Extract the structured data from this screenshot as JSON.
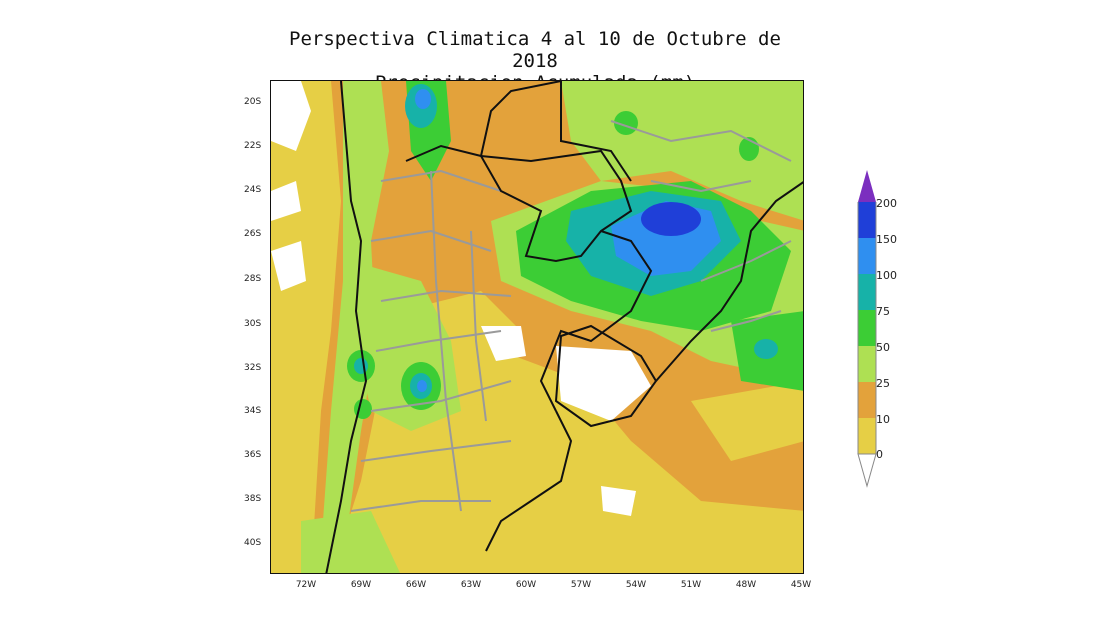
{
  "title": {
    "line1": "Perspectiva Climatica 4 al 10 de Octubre de 2018",
    "line2": "Precipitacion Acumulada (mm)"
  },
  "map": {
    "lat_labels": [
      "20S",
      "22S",
      "24S",
      "26S",
      "28S",
      "30S",
      "32S",
      "34S",
      "36S",
      "38S",
      "40S"
    ],
    "lon_labels": [
      "72W",
      "69W",
      "66W",
      "63W",
      "60W",
      "57W",
      "54W",
      "51W",
      "48W",
      "45W"
    ]
  },
  "legend": {
    "levels": [
      "0",
      "10",
      "25",
      "50",
      "75",
      "100",
      "150",
      "200"
    ],
    "colors": {
      "0-10": "#e6cf45",
      "10-25": "#e3a23b",
      "25-50": "#aee053",
      "50-75": "#3ccd35",
      "75-100": "#17b2a8",
      "100-150": "#2f8ff0",
      "150-200": "#1f3fd8",
      "200+": "#7b2fbf",
      "under_0": "#ffffff"
    }
  }
}
